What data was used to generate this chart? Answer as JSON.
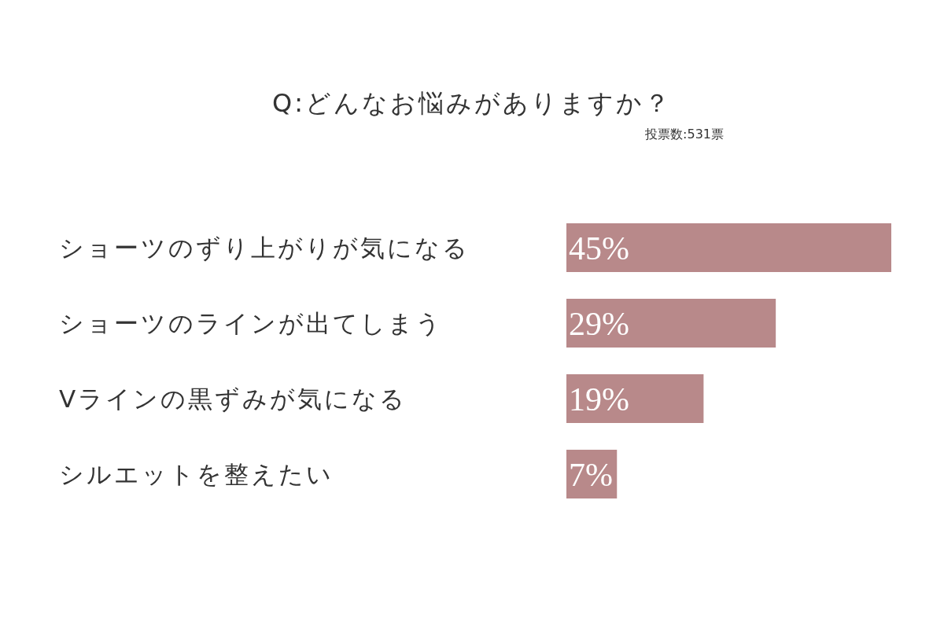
{
  "chart_data": {
    "type": "bar",
    "orientation": "horizontal",
    "title": "Q:どんなお悩みがありますか？",
    "subtitle": "投票数:531票",
    "categories": [
      "ショーツのずり上がりが気になる",
      "ショーツのラインが出てしまう",
      "Vラインの黒ずみが気になる",
      "シルエットを整えたい"
    ],
    "values": [
      45,
      29,
      19,
      7
    ],
    "value_labels": [
      "45%",
      "29%",
      "19%",
      "7%"
    ],
    "color": "#b8898a"
  }
}
